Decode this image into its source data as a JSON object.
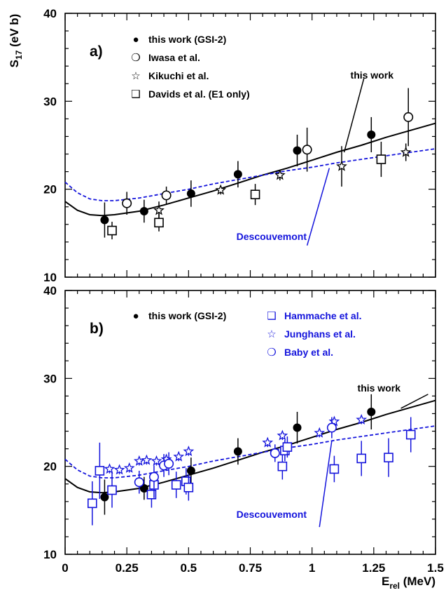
{
  "figure": {
    "ylabel_main": "S",
    "ylabel_sub": "17",
    "ylabel_unit": " (eV b)",
    "xlabel_main": "E",
    "xlabel_sub": "rel",
    "xlabel_unit": " (MeV)"
  },
  "colors": {
    "black": "#000000",
    "blue": "#1414dc"
  },
  "chart_data": [
    {
      "panel_label": "a)",
      "type": "scatter",
      "xlim": [
        0,
        1.5
      ],
      "ylim": [
        10,
        40
      ],
      "xticks": [
        "0",
        "0.25",
        "0.5",
        "0.75",
        "1",
        "1.25",
        "1.5"
      ],
      "yticks": [
        "10",
        "20",
        "30",
        "40"
      ],
      "legend": [
        {
          "symbol": "●",
          "label": "this work (GSI-2)",
          "color": "#000000"
        },
        {
          "symbol": "❍",
          "label": "Iwasa et al.",
          "color": "#000000"
        },
        {
          "symbol": "☆",
          "label": "Kikuchi et al.",
          "color": "#000000"
        },
        {
          "symbol": "❑",
          "label": "Davids et al. (E1 only)",
          "color": "#000000"
        }
      ],
      "series": [
        {
          "name": "this work (GSI-2)",
          "marker": "filled-circle",
          "color": "#000000",
          "points": [
            [
              0.16,
              16.5,
              2.0
            ],
            [
              0.32,
              17.5,
              1.3
            ],
            [
              0.51,
              19.5,
              1.5
            ],
            [
              0.7,
              21.7,
              1.5
            ],
            [
              0.94,
              24.4,
              1.8
            ],
            [
              1.24,
              26.2,
              2.0
            ]
          ]
        },
        {
          "name": "Iwasa et al.",
          "marker": "open-circle",
          "color": "#000000",
          "points": [
            [
              0.25,
              18.4,
              1.3
            ],
            [
              0.41,
              19.3,
              1.0
            ],
            [
              0.98,
              24.5,
              2.5
            ],
            [
              1.39,
              28.2,
              3.3
            ]
          ]
        },
        {
          "name": "Kikuchi et al.",
          "marker": "star",
          "color": "#000000",
          "points": [
            [
              0.38,
              17.6,
              1.0
            ],
            [
              0.63,
              19.9,
              0.5
            ],
            [
              0.87,
              21.6,
              0.6
            ],
            [
              1.12,
              22.6,
              2.3
            ],
            [
              1.38,
              24.2,
              1.0
            ]
          ]
        },
        {
          "name": "Davids et al. (E1 only)",
          "marker": "open-square",
          "color": "#000000",
          "points": [
            [
              0.19,
              15.3,
              1.0
            ],
            [
              0.38,
              16.2,
              1.0
            ],
            [
              0.77,
              19.4,
              1.2
            ],
            [
              1.28,
              23.4,
              2.0
            ]
          ]
        }
      ],
      "curves": [
        {
          "label": "this work",
          "style": "solid",
          "color": "#000000",
          "points": [
            [
              0,
              18.6
            ],
            [
              0.05,
              17.6
            ],
            [
              0.1,
              17.1
            ],
            [
              0.15,
              17.0
            ],
            [
              0.2,
              17.1
            ],
            [
              0.3,
              17.5
            ],
            [
              0.4,
              18.2
            ],
            [
              0.5,
              19.0
            ],
            [
              0.6,
              19.8
            ],
            [
              0.7,
              20.7
            ],
            [
              0.8,
              21.6
            ],
            [
              0.9,
              22.4
            ],
            [
              1.0,
              23.3
            ],
            [
              1.1,
              24.2
            ],
            [
              1.2,
              25.0
            ],
            [
              1.3,
              25.9
            ],
            [
              1.4,
              26.7
            ],
            [
              1.5,
              27.5
            ]
          ]
        },
        {
          "label": "Descouvemont",
          "style": "dashed",
          "color": "#1414dc",
          "points": [
            [
              0,
              20.8
            ],
            [
              0.05,
              19.6
            ],
            [
              0.1,
              18.9
            ],
            [
              0.15,
              18.7
            ],
            [
              0.2,
              18.7
            ],
            [
              0.3,
              19.0
            ],
            [
              0.4,
              19.5
            ],
            [
              0.5,
              20.0
            ],
            [
              0.6,
              20.6
            ],
            [
              0.7,
              21.1
            ],
            [
              0.8,
              21.6
            ],
            [
              0.9,
              22.1
            ],
            [
              1.0,
              22.5
            ],
            [
              1.1,
              23.0
            ],
            [
              1.2,
              23.4
            ],
            [
              1.3,
              23.8
            ],
            [
              1.4,
              24.2
            ],
            [
              1.5,
              24.6
            ]
          ]
        }
      ]
    },
    {
      "panel_label": "b)",
      "type": "scatter",
      "xlim": [
        0,
        1.5
      ],
      "ylim": [
        10,
        40
      ],
      "xticks": [
        "0",
        "0.25",
        "0.5",
        "0.75",
        "1",
        "1.25",
        "1.5"
      ],
      "yticks": [
        "10",
        "20",
        "30",
        "40"
      ],
      "legend": [
        {
          "symbol": "●",
          "label": "this work (GSI-2)",
          "color": "#000000"
        },
        {
          "symbol": "❑",
          "label": "Hammache et al.",
          "color": "#1414dc"
        },
        {
          "symbol": "☆",
          "label": "Junghans et al.",
          "color": "#1414dc"
        },
        {
          "symbol": "❍",
          "label": "Baby et al.",
          "color": "#1414dc"
        }
      ],
      "series": [
        {
          "name": "this work (GSI-2)",
          "marker": "filled-circle",
          "color": "#000000",
          "points": [
            [
              0.16,
              16.5,
              2.0
            ],
            [
              0.32,
              17.5,
              1.3
            ],
            [
              0.51,
              19.5,
              1.5
            ],
            [
              0.7,
              21.7,
              1.5
            ],
            [
              0.94,
              24.4,
              1.8
            ],
            [
              1.24,
              26.2,
              2.0
            ]
          ]
        },
        {
          "name": "Hammache et al.",
          "marker": "open-square",
          "color": "#1414dc",
          "points": [
            [
              0.11,
              15.8,
              2.5
            ],
            [
              0.14,
              19.5,
              3.2
            ],
            [
              0.19,
              17.3,
              2.0
            ],
            [
              0.35,
              16.8,
              1.5
            ],
            [
              0.36,
              17.9,
              1.5
            ],
            [
              0.45,
              17.9,
              1.5
            ],
            [
              0.49,
              18.3,
              1.5
            ],
            [
              0.5,
              17.6,
              1.5
            ],
            [
              0.88,
              20.0,
              1.5
            ],
            [
              0.89,
              21.8,
              1.2
            ],
            [
              0.9,
              22.2,
              1.2
            ],
            [
              1.09,
              19.7,
              1.5
            ],
            [
              1.2,
              20.9,
              2.0
            ],
            [
              1.31,
              21.0,
              2.2
            ],
            [
              1.4,
              23.6,
              2.0
            ]
          ]
        },
        {
          "name": "Junghans et al.",
          "marker": "star",
          "color": "#1414dc",
          "points": [
            [
              0.18,
              19.7,
              0.5
            ],
            [
              0.22,
              19.6,
              0.5
            ],
            [
              0.26,
              19.8,
              0.5
            ],
            [
              0.3,
              20.6,
              0.5
            ],
            [
              0.33,
              20.7,
              0.5
            ],
            [
              0.37,
              20.6,
              0.5
            ],
            [
              0.41,
              20.8,
              0.5
            ],
            [
              0.46,
              21.1,
              0.5
            ],
            [
              0.5,
              21.7,
              0.5
            ],
            [
              0.82,
              22.7,
              0.5
            ],
            [
              0.88,
              23.5,
              0.5
            ],
            [
              1.03,
              23.8,
              0.5
            ],
            [
              1.09,
              25.1,
              0.5
            ],
            [
              1.2,
              25.3,
              0.5
            ]
          ]
        },
        {
          "name": "Baby et al.",
          "marker": "open-circle",
          "color": "#1414dc",
          "points": [
            [
              0.3,
              18.2,
              1.3
            ],
            [
              0.36,
              18.8,
              1.3
            ],
            [
              0.4,
              20.1,
              1.3
            ],
            [
              0.42,
              20.3,
              1.3
            ],
            [
              0.85,
              21.5,
              1.0
            ],
            [
              1.08,
              24.4,
              1.2
            ]
          ]
        }
      ],
      "curves": [
        {
          "label": "this work",
          "style": "solid",
          "color": "#000000",
          "points": [
            [
              0,
              18.6
            ],
            [
              0.05,
              17.6
            ],
            [
              0.1,
              17.1
            ],
            [
              0.15,
              17.0
            ],
            [
              0.2,
              17.1
            ],
            [
              0.3,
              17.5
            ],
            [
              0.4,
              18.2
            ],
            [
              0.5,
              19.0
            ],
            [
              0.6,
              19.8
            ],
            [
              0.7,
              20.7
            ],
            [
              0.8,
              21.6
            ],
            [
              0.9,
              22.4
            ],
            [
              1.0,
              23.3
            ],
            [
              1.1,
              24.2
            ],
            [
              1.2,
              25.0
            ],
            [
              1.3,
              25.9
            ],
            [
              1.4,
              26.7
            ],
            [
              1.5,
              27.5
            ]
          ]
        },
        {
          "label": "Descouvemont",
          "style": "dashed",
          "color": "#1414dc",
          "points": [
            [
              0,
              20.8
            ],
            [
              0.05,
              19.6
            ],
            [
              0.1,
              18.9
            ],
            [
              0.15,
              18.7
            ],
            [
              0.2,
              18.7
            ],
            [
              0.3,
              19.0
            ],
            [
              0.4,
              19.5
            ],
            [
              0.5,
              20.0
            ],
            [
              0.6,
              20.6
            ],
            [
              0.7,
              21.1
            ],
            [
              0.8,
              21.6
            ],
            [
              0.9,
              22.1
            ],
            [
              1.0,
              22.5
            ],
            [
              1.1,
              23.0
            ],
            [
              1.2,
              23.4
            ],
            [
              1.3,
              23.8
            ],
            [
              1.4,
              24.2
            ],
            [
              1.5,
              24.6
            ]
          ]
        }
      ]
    }
  ]
}
